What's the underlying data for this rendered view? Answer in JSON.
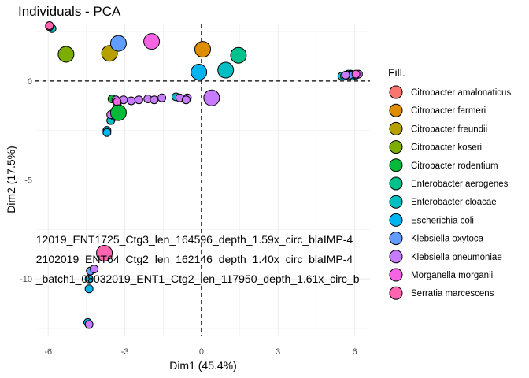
{
  "chart_data": {
    "type": "scatter",
    "title": "Individuals - PCA",
    "xlabel": "Dim1 (45.4%)",
    "ylabel": "Dim2 (17.5%)",
    "xlim": [
      -6.5,
      6.6
    ],
    "ylim": [
      -12.9,
      2.9
    ],
    "xticks": [
      -6,
      -3,
      0,
      3,
      6
    ],
    "yticks": [
      0,
      -5,
      -10
    ],
    "ytick_labels": [
      "0",
      "-5",
      "-10"
    ],
    "xtick_labels": [
      "-6",
      "-3",
      "0",
      "3",
      "6"
    ],
    "reference_lines": {
      "x": 0,
      "y": 0
    },
    "grid": true,
    "legend": {
      "title": "Fill.",
      "position": "right",
      "entries": [
        {
          "name": "Citrobacter amalonaticus",
          "color": "#F8766D"
        },
        {
          "name": "Citrobacter farmeri",
          "color": "#DE8C00"
        },
        {
          "name": "Citrobacter freundii",
          "color": "#B79F00"
        },
        {
          "name": "Citrobacter koseri",
          "color": "#7CAE00"
        },
        {
          "name": "Citrobacter rodentium",
          "color": "#00BA38"
        },
        {
          "name": "Enterobacter aerogenes",
          "color": "#00C08B"
        },
        {
          "name": "Enterobacter cloacae",
          "color": "#00BFC4"
        },
        {
          "name": "Escherichia coli",
          "color": "#00B4F0"
        },
        {
          "name": "Klebsiella oxytoca",
          "color": "#619CFF"
        },
        {
          "name": "Klebsiella pneumoniae",
          "color": "#C77CFF"
        },
        {
          "name": "Morganella morganii",
          "color": "#F564E3"
        },
        {
          "name": "Serratia marcescens",
          "color": "#FF64B0"
        }
      ]
    },
    "series": [
      {
        "name": "Citrobacter amalonaticus",
        "color": "#F8766D",
        "points": []
      },
      {
        "name": "Citrobacter farmeri",
        "color": "#DE8C00",
        "points": [
          [
            0.05,
            1.6,
            "large"
          ]
        ]
      },
      {
        "name": "Citrobacter freundii",
        "color": "#B79F00",
        "points": [
          [
            -3.6,
            1.4,
            "large"
          ]
        ]
      },
      {
        "name": "Citrobacter koseri",
        "color": "#7CAE00",
        "points": [
          [
            -5.3,
            1.35,
            "large"
          ]
        ]
      },
      {
        "name": "Citrobacter rodentium",
        "color": "#00BA38",
        "points": [
          [
            -3.25,
            -1.6,
            "large"
          ],
          [
            -3.5,
            -0.9,
            "small"
          ]
        ]
      },
      {
        "name": "Enterobacter aerogenes",
        "color": "#00C08B",
        "points": [
          [
            1.45,
            1.3,
            "large"
          ],
          [
            -3.3,
            -1.2,
            "small"
          ]
        ]
      },
      {
        "name": "Enterobacter cloacae",
        "color": "#00BFC4",
        "points": [
          [
            0.95,
            0.55,
            "large"
          ],
          [
            5.5,
            0.25,
            "small"
          ],
          [
            5.7,
            0.3,
            "small"
          ],
          [
            5.85,
            0.35,
            "small"
          ],
          [
            5.95,
            0.3,
            "small"
          ],
          [
            -5.85,
            2.65,
            "small"
          ],
          [
            -3.7,
            -2.5,
            "small"
          ],
          [
            -3.55,
            -2.0,
            "small"
          ],
          [
            -1.0,
            -0.8,
            "small"
          ]
        ]
      },
      {
        "name": "Escherichia coli",
        "color": "#00B4F0",
        "points": [
          [
            -0.1,
            0.45,
            "large"
          ],
          [
            5.6,
            0.25,
            "small"
          ],
          [
            5.75,
            0.35,
            "small"
          ],
          [
            5.9,
            0.25,
            "small"
          ],
          [
            6.05,
            0.3,
            "small"
          ],
          [
            -4.4,
            -10.0,
            "small"
          ],
          [
            -4.4,
            -10.5,
            "small"
          ],
          [
            -4.45,
            -12.2,
            "small"
          ],
          [
            -3.4,
            -1.8,
            "small"
          ],
          [
            -3.7,
            -2.6,
            "small"
          ]
        ]
      },
      {
        "name": "Klebsiella oxytoca",
        "color": "#619CFF",
        "points": [
          [
            -3.25,
            1.9,
            "large"
          ],
          [
            5.8,
            0.3,
            "small"
          ],
          [
            -4.35,
            -9.6,
            "small"
          ]
        ]
      },
      {
        "name": "Klebsiella pneumoniae",
        "color": "#C77CFF",
        "points": [
          [
            0.4,
            -0.85,
            "large"
          ],
          [
            -3.35,
            -0.95,
            "small"
          ],
          [
            -3.05,
            -0.95,
            "small"
          ],
          [
            -2.75,
            -1.0,
            "small"
          ],
          [
            -2.45,
            -0.95,
            "small"
          ],
          [
            -2.1,
            -0.9,
            "small"
          ],
          [
            -1.85,
            -0.95,
            "small"
          ],
          [
            -1.55,
            -0.85,
            "small"
          ],
          [
            -0.85,
            -0.85,
            "small"
          ],
          [
            -0.55,
            -0.85,
            "small"
          ],
          [
            -0.6,
            -0.95,
            "small"
          ],
          [
            -3.55,
            -1.7,
            "small"
          ],
          [
            -4.2,
            -9.5,
            "small"
          ],
          [
            -4.4,
            -12.3,
            "small"
          ],
          [
            6.15,
            0.35,
            "small"
          ],
          [
            5.65,
            0.3,
            "small"
          ]
        ]
      },
      {
        "name": "Morganella morganii",
        "color": "#F564E3",
        "points": [
          [
            -1.95,
            2.0,
            "large"
          ],
          [
            -5.95,
            2.75,
            "small"
          ],
          [
            6.05,
            0.35,
            "small"
          ],
          [
            -3.3,
            -1.05,
            "small"
          ]
        ]
      },
      {
        "name": "Serratia marcescens",
        "color": "#FF64B0",
        "points": [
          [
            -3.8,
            -8.7,
            "large"
          ],
          [
            -5.95,
            2.8,
            "small"
          ]
        ]
      }
    ],
    "annotations": [
      {
        "text": "12019_ENT1725_Ctg3_len_164596_depth_1.59x_circ_blaIMP-4",
        "x": -6.6,
        "y": -8.2
      },
      {
        "text": "2102019_ENT64_Ctg2_len_162146_depth_1.40x_circ_blaIMP-4",
        "x": -6.6,
        "y": -9.2
      },
      {
        "text": "_batch1_08032019_ENT1_Ctg2_len_117950_depth_1.61x_circ_b",
        "x": -6.6,
        "y": -10.2
      }
    ]
  }
}
